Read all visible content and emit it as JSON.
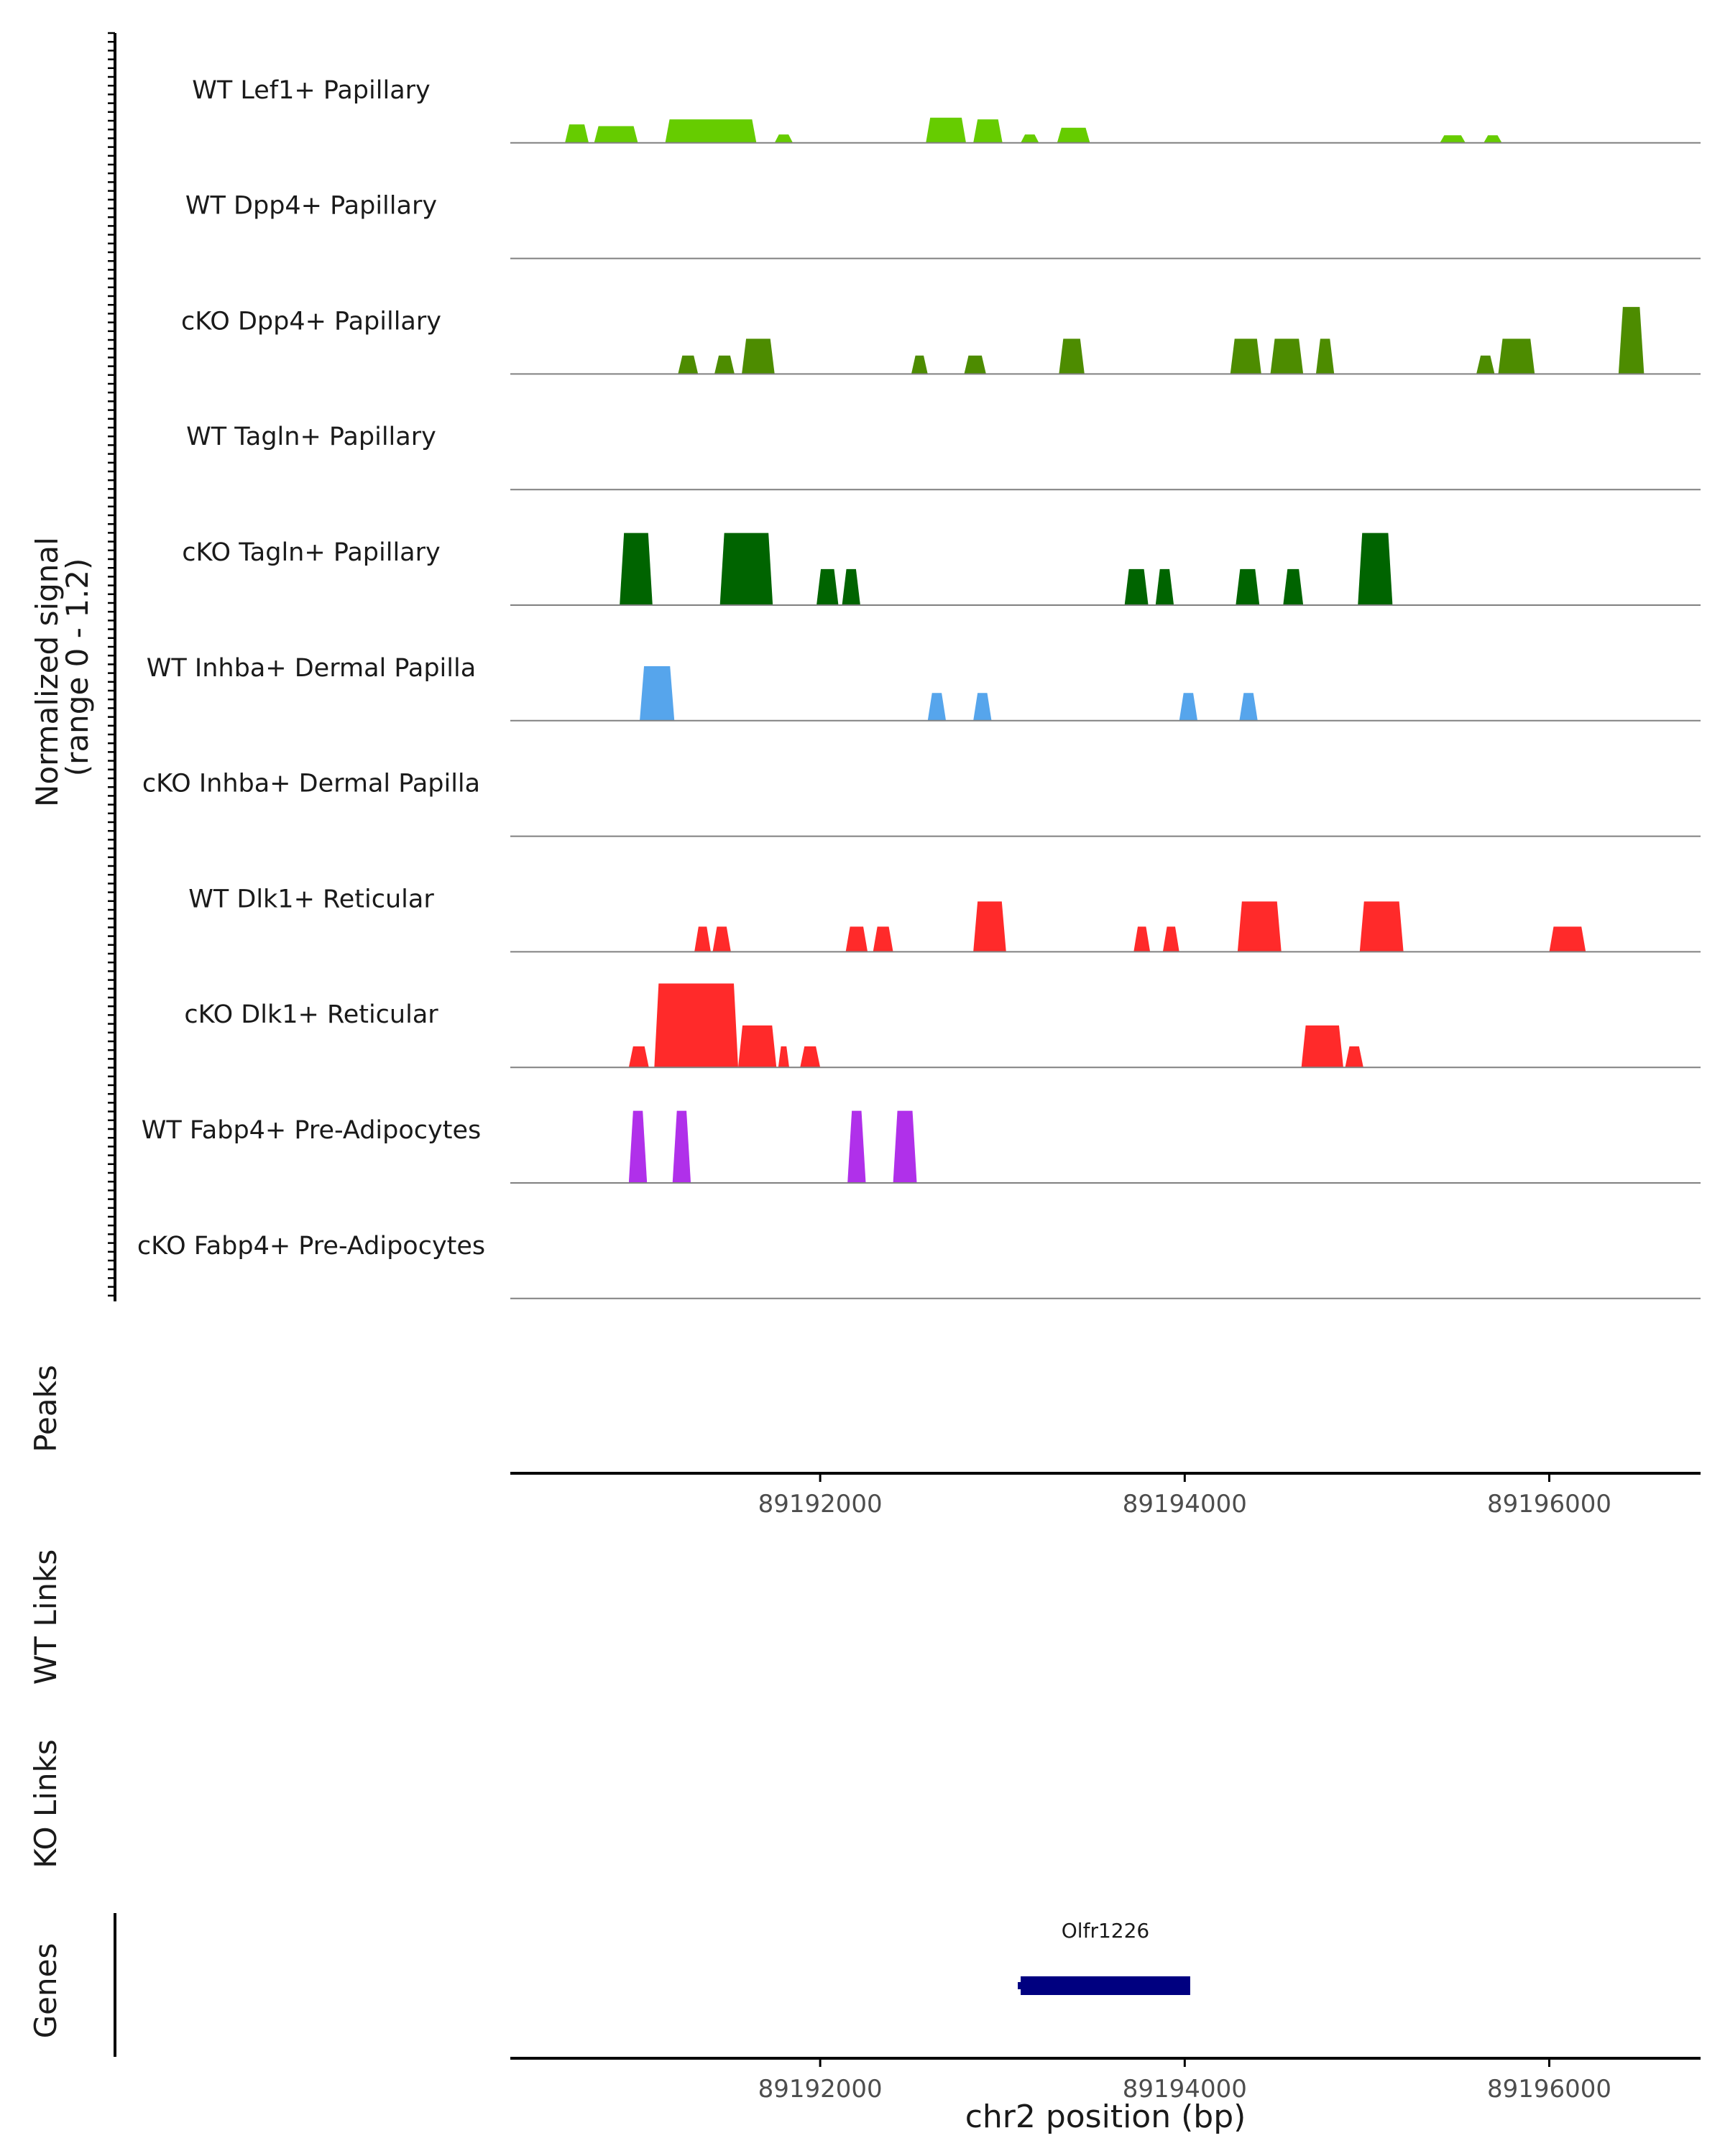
{
  "chart_data": {
    "type": "area",
    "region": {
      "chrom": "chr2",
      "start": 89190300,
      "end": 89196830
    },
    "ylabel_line1": "Normalized signal",
    "ylabel_line2": "(range 0 - 1.2)",
    "ylim": [
      0,
      1.2
    ],
    "xlabel": "chr2 position (bp)",
    "x_ticks": [
      89192000,
      89194000,
      89196000
    ],
    "x_tick_labels": [
      "89192000",
      "89194000",
      "89196000"
    ],
    "tracks": [
      {
        "name": "WT Lef1+ Papillary",
        "color": "#66cc00",
        "peaks": [
          [
            89190600,
            89190730,
            0.22
          ],
          [
            89190760,
            89191000,
            0.2
          ],
          [
            89191150,
            89191650,
            0.28
          ],
          [
            89191750,
            89191850,
            0.1
          ],
          [
            89192580,
            89192800,
            0.3
          ],
          [
            89192840,
            89193000,
            0.28
          ],
          [
            89193100,
            89193200,
            0.1
          ],
          [
            89193300,
            89193480,
            0.18
          ],
          [
            89195400,
            89195540,
            0.09
          ],
          [
            89195640,
            89195740,
            0.09
          ]
        ]
      },
      {
        "name": "WT Dpp4+ Papillary",
        "color": "#4d8c00",
        "peaks": []
      },
      {
        "name": "cKO Dpp4+ Papillary",
        "color": "#4d8c00",
        "peaks": [
          [
            89191220,
            89191330,
            0.22
          ],
          [
            89191420,
            89191530,
            0.22
          ],
          [
            89191570,
            89191750,
            0.42
          ],
          [
            89192500,
            89192590,
            0.22
          ],
          [
            89192790,
            89192910,
            0.22
          ],
          [
            89193310,
            89193450,
            0.42
          ],
          [
            89194250,
            89194420,
            0.42
          ],
          [
            89194470,
            89194650,
            0.42
          ],
          [
            89194720,
            89194820,
            0.42
          ],
          [
            89195600,
            89195700,
            0.22
          ],
          [
            89195720,
            89195920,
            0.42
          ],
          [
            89196380,
            89196520,
            0.8
          ]
        ]
      },
      {
        "name": "WT Tagln+ Papillary",
        "color": "#006400",
        "peaks": []
      },
      {
        "name": "cKO Tagln+ Papillary",
        "color": "#006400",
        "peaks": [
          [
            89190900,
            89191080,
            0.86
          ],
          [
            89191450,
            89191740,
            0.86
          ],
          [
            89191980,
            89192100,
            0.43
          ],
          [
            89192120,
            89192220,
            0.43
          ],
          [
            89193670,
            89193800,
            0.43
          ],
          [
            89193840,
            89193940,
            0.43
          ],
          [
            89194280,
            89194410,
            0.43
          ],
          [
            89194540,
            89194650,
            0.43
          ],
          [
            89194950,
            89195140,
            0.86
          ]
        ]
      },
      {
        "name": "WT Inhba+ Dermal Papilla",
        "color": "#56a5ec",
        "peaks": [
          [
            89191010,
            89191200,
            0.65
          ],
          [
            89192590,
            89192690,
            0.33
          ],
          [
            89192840,
            89192940,
            0.33
          ],
          [
            89193970,
            89194070,
            0.33
          ],
          [
            89194300,
            89194400,
            0.33
          ]
        ]
      },
      {
        "name": "cKO Inhba+ Dermal Papilla",
        "color": "#56a5ec",
        "peaks": []
      },
      {
        "name": "WT Dlk1+ Reticular",
        "color": "#ff2a2a",
        "peaks": [
          [
            89191310,
            89191400,
            0.3
          ],
          [
            89191410,
            89191510,
            0.3
          ],
          [
            89192140,
            89192260,
            0.3
          ],
          [
            89192290,
            89192400,
            0.3
          ],
          [
            89192840,
            89193020,
            0.6
          ],
          [
            89193720,
            89193810,
            0.3
          ],
          [
            89193880,
            89193970,
            0.3
          ],
          [
            89194290,
            89194530,
            0.6
          ],
          [
            89194960,
            89195200,
            0.6
          ],
          [
            89196000,
            89196200,
            0.3
          ]
        ]
      },
      {
        "name": "cKO Dlk1+ Reticular",
        "color": "#ff2a2a",
        "peaks": [
          [
            89190950,
            89191060,
            0.25
          ],
          [
            89191090,
            89191550,
            1.0
          ],
          [
            89191550,
            89191760,
            0.5
          ],
          [
            89191770,
            89191830,
            0.25
          ],
          [
            89191890,
            89192000,
            0.25
          ],
          [
            89194640,
            89194870,
            0.5
          ],
          [
            89194880,
            89194980,
            0.25
          ]
        ]
      },
      {
        "name": "WT Fabp4+ Pre-Adipocytes",
        "color": "#b030ea",
        "peaks": [
          [
            89190950,
            89191050,
            0.86
          ],
          [
            89191190,
            89191290,
            0.86
          ],
          [
            89192150,
            89192250,
            0.86
          ],
          [
            89192400,
            89192530,
            0.86
          ]
        ]
      },
      {
        "name": "cKO Fabp4+ Pre-Adipocytes",
        "color": "#b030ea",
        "peaks": []
      }
    ],
    "panels": [
      "Peaks",
      "WT Links",
      "KO Links",
      "Genes"
    ],
    "genes": [
      {
        "name": "Olfr1226",
        "start": 89193100,
        "end": 89194030,
        "color": "#000080"
      }
    ]
  }
}
